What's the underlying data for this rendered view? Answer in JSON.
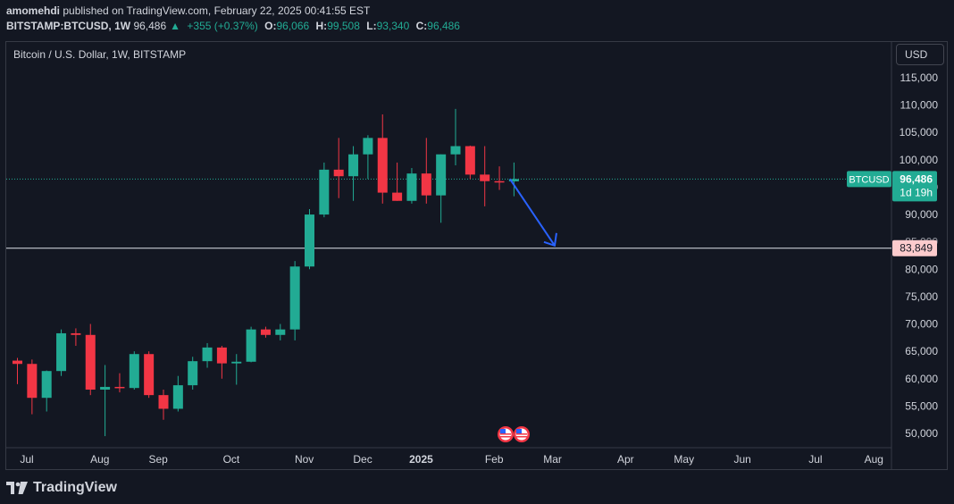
{
  "header": {
    "publisher": "amomehdi",
    "published_text": "published on TradingView.com, February 22, 2025 00:41:55 EST",
    "symbol": "BITSTAMP:BTCUSD, 1W",
    "price": "96,486",
    "change_arrow": "▲",
    "change": "+355 (+0.37%)",
    "o_label": "O:",
    "o_value": "96,066",
    "h_label": "H:",
    "h_value": "99,508",
    "l_label": "L:",
    "l_value": "93,340",
    "c_label": "C:",
    "c_value": "96,486"
  },
  "legend": {
    "title": "Bitcoin / U.S. Dollar, 1W, BITSTAMP"
  },
  "currency_button": {
    "label": "USD"
  },
  "price_axis": {
    "labels": [
      "115,000",
      "110,000",
      "105,000",
      "100,000",
      "95,000",
      "90,000",
      "85,000",
      "80,000",
      "75,000",
      "70,000",
      "65,000",
      "60,000",
      "55,000",
      "50,000"
    ],
    "values": [
      115000,
      110000,
      105000,
      100000,
      95000,
      90000,
      85000,
      80000,
      75000,
      70000,
      65000,
      60000,
      55000,
      50000
    ]
  },
  "time_axis": {
    "labels": [
      "Jul",
      "Aug",
      "Sep",
      "Oct",
      "Nov",
      "Dec",
      "2025",
      "Feb",
      "Mar",
      "Apr",
      "May",
      "Jun",
      "Jul",
      "Aug"
    ],
    "week_index": [
      0,
      5,
      9,
      14,
      19,
      23,
      27,
      32,
      36,
      41,
      45,
      49,
      54,
      58
    ]
  },
  "badges": {
    "symbol_tag": "BTCUSD",
    "last_price": "96,486",
    "countdown": "1d 19h",
    "level_price": "83,849"
  },
  "level_line": {
    "value": 83849
  },
  "annotation_arrow": {
    "from_week": 34,
    "from_price": 96486,
    "to_week": 37,
    "to_price": 84000
  },
  "chart_data": {
    "type": "candlestick",
    "title": "Bitcoin / U.S. Dollar, 1W, BITSTAMP",
    "ylim": [
      47000,
      119500
    ],
    "up_color": "#22ab94",
    "down_color": "#f23645",
    "candles": [
      {
        "o": 63300,
        "h": 63800,
        "l": 59000,
        "c": 62700
      },
      {
        "o": 62700,
        "h": 63500,
        "l": 53500,
        "c": 56500
      },
      {
        "o": 56500,
        "h": 61500,
        "l": 54000,
        "c": 61400
      },
      {
        "o": 61400,
        "h": 69000,
        "l": 60500,
        "c": 68300
      },
      {
        "o": 68300,
        "h": 69200,
        "l": 66000,
        "c": 68000
      },
      {
        "o": 68000,
        "h": 70000,
        "l": 57000,
        "c": 58000
      },
      {
        "o": 58000,
        "h": 62500,
        "l": 49500,
        "c": 58500
      },
      {
        "o": 58500,
        "h": 61000,
        "l": 57500,
        "c": 58300
      },
      {
        "o": 58300,
        "h": 65000,
        "l": 58000,
        "c": 64500
      },
      {
        "o": 64500,
        "h": 65000,
        "l": 56500,
        "c": 57000
      },
      {
        "o": 57000,
        "h": 58000,
        "l": 52500,
        "c": 54500
      },
      {
        "o": 54500,
        "h": 60500,
        "l": 54000,
        "c": 58800
      },
      {
        "o": 58800,
        "h": 64000,
        "l": 58000,
        "c": 63200
      },
      {
        "o": 63200,
        "h": 66500,
        "l": 62000,
        "c": 65700
      },
      {
        "o": 65700,
        "h": 66000,
        "l": 60000,
        "c": 62800
      },
      {
        "o": 62800,
        "h": 64500,
        "l": 58900,
        "c": 63100
      },
      {
        "o": 63100,
        "h": 69500,
        "l": 63000,
        "c": 69000
      },
      {
        "o": 69000,
        "h": 69500,
        "l": 67500,
        "c": 68000
      },
      {
        "o": 68000,
        "h": 70000,
        "l": 67000,
        "c": 69000
      },
      {
        "o": 69000,
        "h": 81500,
        "l": 67000,
        "c": 80500
      },
      {
        "o": 80500,
        "h": 91000,
        "l": 80000,
        "c": 90000
      },
      {
        "o": 90000,
        "h": 99500,
        "l": 89500,
        "c": 98200
      },
      {
        "o": 98200,
        "h": 104000,
        "l": 93000,
        "c": 97000
      },
      {
        "o": 97000,
        "h": 102500,
        "l": 92500,
        "c": 101000
      },
      {
        "o": 101000,
        "h": 104500,
        "l": 96500,
        "c": 104000
      },
      {
        "o": 104000,
        "h": 108300,
        "l": 92000,
        "c": 94000
      },
      {
        "o": 94000,
        "h": 99500,
        "l": 92500,
        "c": 92500
      },
      {
        "o": 92500,
        "h": 98500,
        "l": 92000,
        "c": 97500
      },
      {
        "o": 97500,
        "h": 104000,
        "l": 92000,
        "c": 93500
      },
      {
        "o": 93500,
        "h": 101000,
        "l": 88500,
        "c": 101000
      },
      {
        "o": 101000,
        "h": 109300,
        "l": 99000,
        "c": 102500
      },
      {
        "o": 102500,
        "h": 102600,
        "l": 96500,
        "c": 97300
      },
      {
        "o": 97300,
        "h": 102500,
        "l": 91500,
        "c": 96100
      },
      {
        "o": 96100,
        "h": 98800,
        "l": 94500,
        "c": 96066
      },
      {
        "o": 96066,
        "h": 99508,
        "l": 93340,
        "c": 96486
      }
    ]
  },
  "colors": {
    "background": "#131722",
    "grid_border": "#363a45",
    "accent_up": "#22ab94",
    "accent_down": "#f23645",
    "arrow": "#2962ff",
    "level_badge": "#fccbcd"
  },
  "footer": {
    "brand": "TradingView"
  }
}
